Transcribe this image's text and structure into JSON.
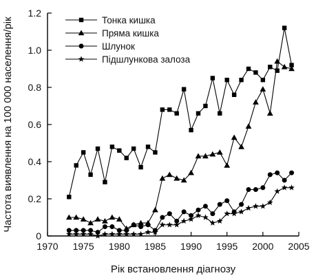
{
  "chart_data": {
    "type": "line",
    "title": "",
    "xlabel": "Рік встановлення діагнозу",
    "ylabel": "Частота виявлення на 100 000 населення/рік",
    "xlim": [
      1970,
      2005
    ],
    "ylim": [
      0,
      1.2
    ],
    "x_ticks": [
      "1970",
      "1975",
      "1980",
      "1985",
      "1990",
      "1995",
      "2000",
      "2005"
    ],
    "y_ticks": [
      "0",
      "0.2",
      "0.4",
      "0.6",
      "0.8",
      "1.0",
      "1.2"
    ],
    "grid": false,
    "legend_position": "top-left",
    "x": [
      1973,
      1974,
      1975,
      1976,
      1977,
      1978,
      1979,
      1980,
      1981,
      1982,
      1983,
      1984,
      1985,
      1986,
      1987,
      1988,
      1989,
      1990,
      1991,
      1992,
      1993,
      1994,
      1995,
      1996,
      1997,
      1998,
      1999,
      2000,
      2001,
      2002,
      2003,
      2004
    ],
    "series": [
      {
        "name": "Тонка кишка",
        "marker": "square",
        "values": [
          0.21,
          0.38,
          0.45,
          0.33,
          0.47,
          0.29,
          0.48,
          0.46,
          0.42,
          0.47,
          0.37,
          0.48,
          0.45,
          0.68,
          0.68,
          0.66,
          0.79,
          0.57,
          0.66,
          0.7,
          0.85,
          0.66,
          0.84,
          0.76,
          0.84,
          0.9,
          0.88,
          0.84,
          0.91,
          0.89,
          1.12,
          0.92
        ]
      },
      {
        "name": "Пряма кишка",
        "marker": "triangle",
        "values": [
          0.1,
          0.1,
          0.09,
          0.07,
          0.09,
          0.08,
          0.1,
          0.09,
          0.04,
          0.06,
          0.07,
          0.07,
          0.14,
          0.31,
          0.33,
          0.31,
          0.3,
          0.34,
          0.43,
          0.43,
          0.44,
          0.45,
          0.38,
          0.53,
          0.48,
          0.59,
          0.72,
          0.79,
          0.66,
          0.94,
          0.91,
          0.9
        ]
      },
      {
        "name": "Шлунок",
        "marker": "circle",
        "values": [
          0.03,
          0.03,
          0.03,
          0.03,
          0.02,
          0.05,
          0.05,
          0.03,
          0.03,
          0.06,
          0.05,
          0.06,
          0.03,
          0.1,
          0.12,
          0.08,
          0.13,
          0.11,
          0.14,
          0.16,
          0.12,
          0.17,
          0.19,
          0.13,
          0.17,
          0.25,
          0.25,
          0.26,
          0.33,
          0.34,
          0.3,
          0.34
        ]
      },
      {
        "name": "Підшлункова залоза",
        "marker": "star",
        "values": [
          0.01,
          0.01,
          0.01,
          0.01,
          0.0,
          0.01,
          0.01,
          0.01,
          0.01,
          0.01,
          0.01,
          0.02,
          0.02,
          0.06,
          0.06,
          0.06,
          0.08,
          0.09,
          0.11,
          0.1,
          0.07,
          0.08,
          0.12,
          0.12,
          0.13,
          0.15,
          0.16,
          0.16,
          0.18,
          0.24,
          0.26,
          0.26
        ]
      }
    ]
  }
}
